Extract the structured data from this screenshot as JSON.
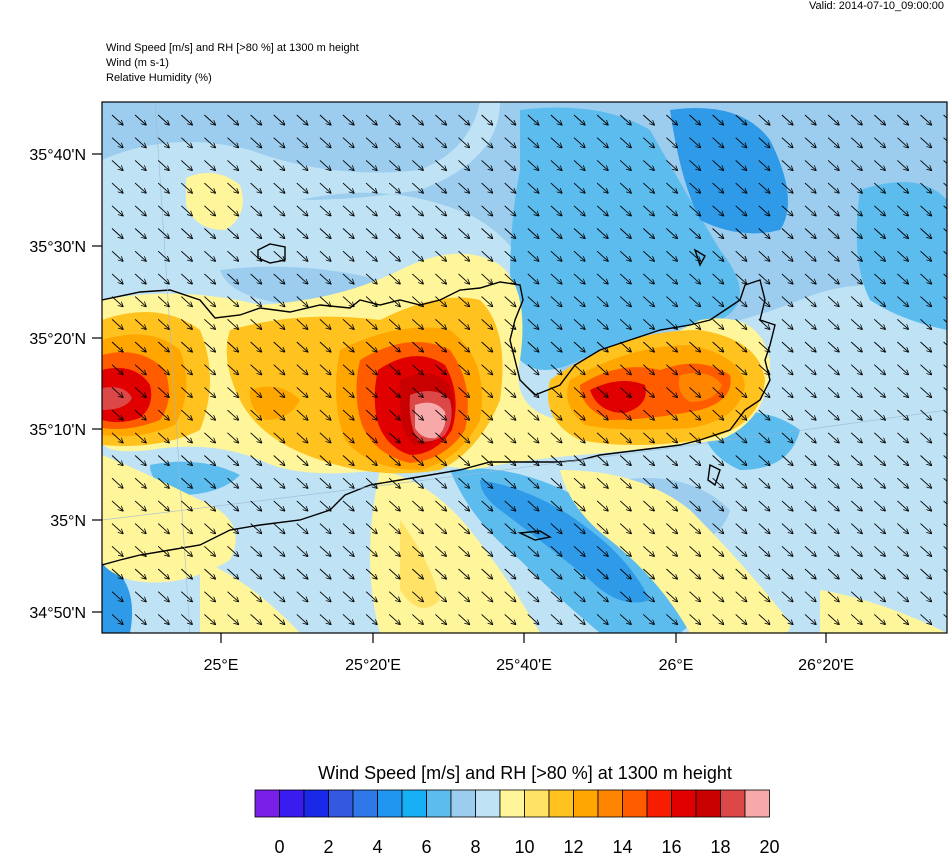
{
  "header": {
    "valid": "Valid: 2014-07-10_09:00:00",
    "title_lines": [
      "Wind Speed [m/s] and RH [>80 %] at 1300 m height",
      "Wind   (m s-1)",
      "Relative Humidity   (%)"
    ]
  },
  "map": {
    "lat_labels": [
      "35°40'N",
      "35°30'N",
      "35°20'N",
      "35°10'N",
      "35°N",
      "34°50'N"
    ],
    "lon_labels": [
      "25°E",
      "25°20'E",
      "25°40'E",
      "26°E",
      "26°20'E"
    ],
    "wind_arrow_direction": "north-west to south-east"
  },
  "colorbar": {
    "title": "Wind Speed [m/s] and RH [>80 %] at 1300 m height",
    "tick_labels": [
      "0",
      "2",
      "4",
      "6",
      "8",
      "10",
      "12",
      "14",
      "16",
      "18",
      "20"
    ],
    "colors": [
      "#7a1fe8",
      "#3a1cf0",
      "#1a28e8",
      "#3458e0",
      "#2e78ea",
      "#2196f0",
      "#17b0f4",
      "#5cbcee",
      "#9ccdee",
      "#bfe3f5",
      "#fff59a",
      "#ffe266",
      "#ffc21f",
      "#ffa600",
      "#ff8400",
      "#ff5c00",
      "#f71d00",
      "#e00000",
      "#c80000",
      "#dc4747",
      "#f7a8a8"
    ]
  }
}
